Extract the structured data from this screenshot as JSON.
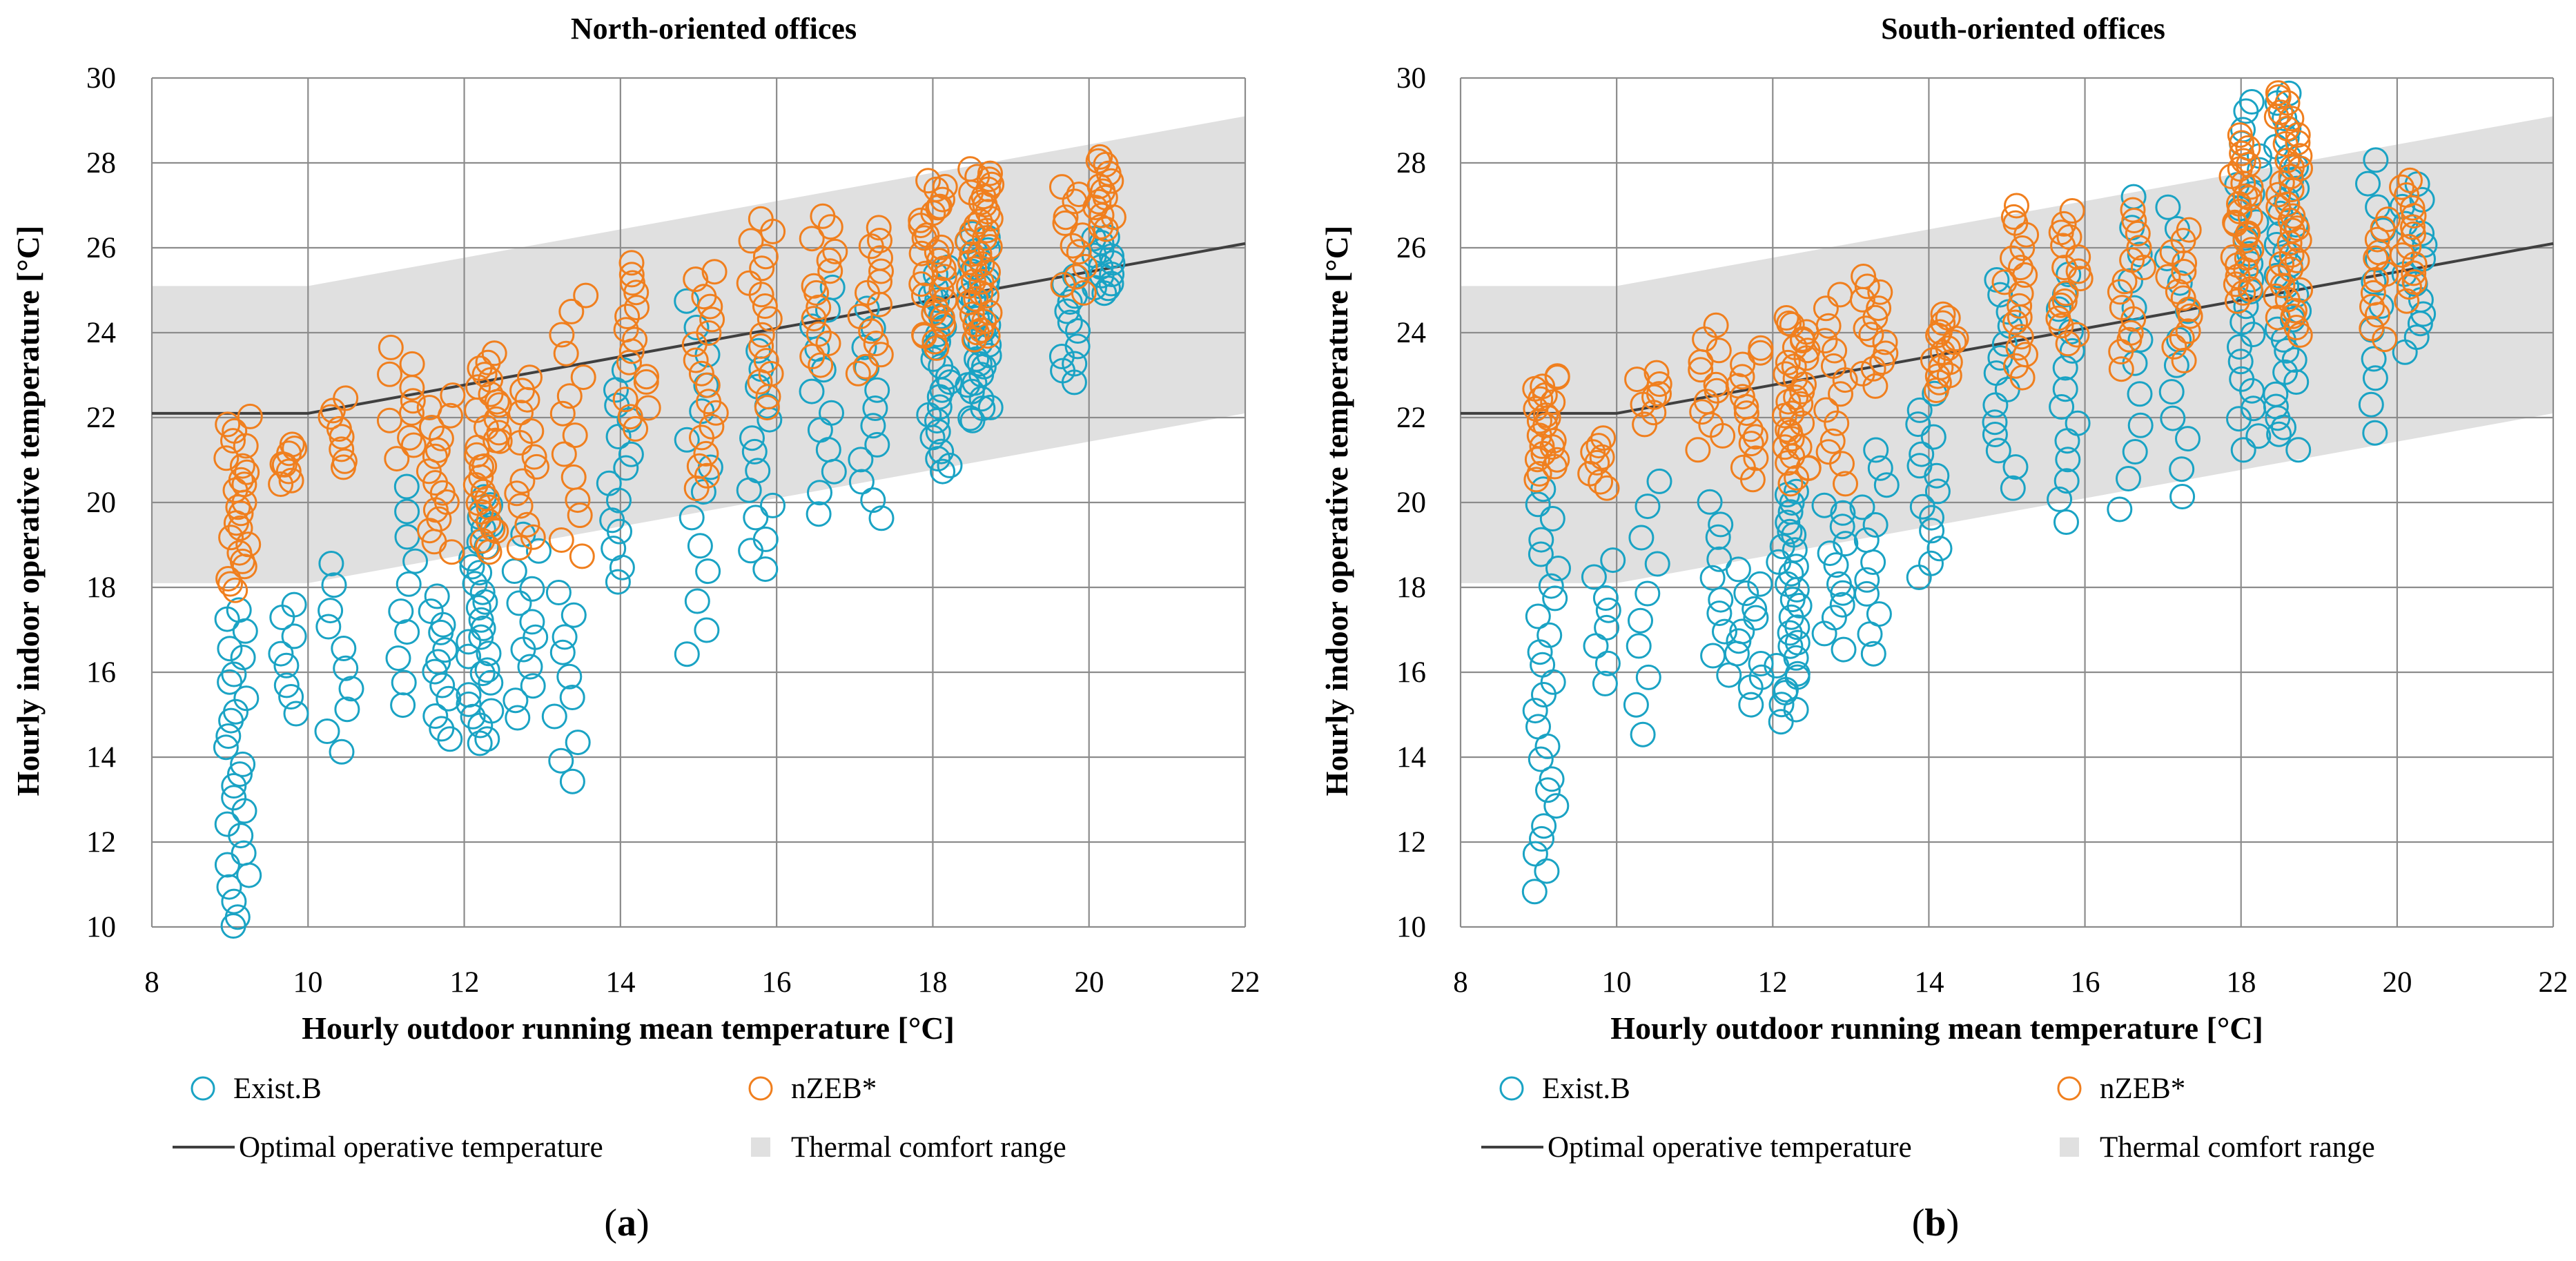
{
  "figure": {
    "panels": [
      {
        "label_open": "(",
        "label_letter": "a",
        "label_close": ")"
      },
      {
        "label_open": "(",
        "label_letter": "b",
        "label_close": ")"
      }
    ]
  },
  "colors": {
    "exist_b": "#1aa3c4",
    "nzeb": "#f07f1e",
    "optimal_line": "#404040",
    "comfort_band": "#e0e0e0",
    "grid": "#8c8c8c"
  },
  "chart_data": [
    {
      "type": "scatter",
      "title": "North-oriented offices",
      "xlabel": "Hourly outdoor running mean temperature [°C]",
      "ylabel": "Hourly indoor operative temperature [°C]",
      "xlim": [
        8,
        22
      ],
      "ylim": [
        10,
        30
      ],
      "xticks": [
        8,
        10,
        12,
        14,
        16,
        18,
        20,
        22
      ],
      "yticks": [
        10,
        12,
        14,
        16,
        18,
        20,
        22,
        24,
        26,
        28,
        30
      ],
      "grid": true,
      "legend": {
        "position": "bottom",
        "entries": [
          "Exist.B",
          "nZEB*",
          "Optimal operative temperature",
          "Thermal comfort range"
        ]
      },
      "optimal_line": {
        "name": "Optimal operative temperature",
        "x": [
          8,
          10,
          22
        ],
        "y": [
          22.1,
          22.1,
          26.1
        ]
      },
      "comfort_range": {
        "name": "Thermal comfort range",
        "x": [
          8,
          10,
          22
        ],
        "lower": [
          18.1,
          18.1,
          22.1
        ],
        "upper": [
          25.1,
          25.1,
          29.1
        ]
      },
      "series": [
        {
          "name": "Exist.B",
          "clusters": [
            {
              "x": 9.1,
              "y_min": 10.0,
              "y_max": 17.5,
              "n": 26
            },
            {
              "x": 9.7,
              "y_min": 15.0,
              "y_max": 17.6,
              "n": 8
            },
            {
              "x": 10.4,
              "y_min": 14.1,
              "y_max": 18.5,
              "n": 10
            },
            {
              "x": 11.3,
              "y_min": 15.2,
              "y_max": 20.3,
              "n": 10
            },
            {
              "x": 11.7,
              "y_min": 14.4,
              "y_max": 17.8,
              "n": 12
            },
            {
              "x": 12.2,
              "y_min": 14.3,
              "y_max": 20.1,
              "n": 30
            },
            {
              "x": 12.8,
              "y_min": 14.9,
              "y_max": 19.2,
              "n": 12
            },
            {
              "x": 13.3,
              "y_min": 13.4,
              "y_max": 17.9,
              "n": 10
            },
            {
              "x": 14.0,
              "y_min": 18.1,
              "y_max": 23.1,
              "n": 14
            },
            {
              "x": 15.0,
              "y_min": 16.4,
              "y_max": 24.7,
              "n": 14
            },
            {
              "x": 15.8,
              "y_min": 18.4,
              "y_max": 23.5,
              "n": 14
            },
            {
              "x": 16.6,
              "y_min": 19.7,
              "y_max": 25.1,
              "n": 12
            },
            {
              "x": 17.2,
              "y_min": 19.6,
              "y_max": 24.5,
              "n": 12
            },
            {
              "x": 18.1,
              "y_min": 20.7,
              "y_max": 25.5,
              "n": 26
            },
            {
              "x": 18.6,
              "y_min": 21.9,
              "y_max": 26.4,
              "n": 34
            },
            {
              "x": 19.7,
              "y_min": 22.8,
              "y_max": 25.4,
              "n": 12
            },
            {
              "x": 20.2,
              "y_min": 24.9,
              "y_max": 26.3,
              "n": 14
            }
          ]
        },
        {
          "name": "nZEB*",
          "clusters": [
            {
              "x": 9.1,
              "y_min": 17.9,
              "y_max": 22.0,
              "n": 24
            },
            {
              "x": 9.8,
              "y_min": 20.4,
              "y_max": 21.4,
              "n": 8
            },
            {
              "x": 10.4,
              "y_min": 20.8,
              "y_max": 22.4,
              "n": 8
            },
            {
              "x": 11.2,
              "y_min": 21.0,
              "y_max": 23.6,
              "n": 10
            },
            {
              "x": 11.7,
              "y_min": 18.8,
              "y_max": 22.5,
              "n": 16
            },
            {
              "x": 12.3,
              "y_min": 18.8,
              "y_max": 23.5,
              "n": 32
            },
            {
              "x": 12.8,
              "y_min": 18.9,
              "y_max": 23.0,
              "n": 14
            },
            {
              "x": 13.4,
              "y_min": 18.7,
              "y_max": 24.9,
              "n": 14
            },
            {
              "x": 14.2,
              "y_min": 21.7,
              "y_max": 25.7,
              "n": 16
            },
            {
              "x": 15.1,
              "y_min": 20.3,
              "y_max": 25.5,
              "n": 18
            },
            {
              "x": 15.8,
              "y_min": 22.2,
              "y_max": 26.7,
              "n": 16
            },
            {
              "x": 16.6,
              "y_min": 23.2,
              "y_max": 26.8,
              "n": 14
            },
            {
              "x": 17.2,
              "y_min": 23.0,
              "y_max": 26.5,
              "n": 14
            },
            {
              "x": 18.0,
              "y_min": 23.6,
              "y_max": 27.6,
              "n": 30
            },
            {
              "x": 18.6,
              "y_min": 23.8,
              "y_max": 27.9,
              "n": 40
            },
            {
              "x": 19.8,
              "y_min": 24.9,
              "y_max": 27.5,
              "n": 12
            },
            {
              "x": 20.2,
              "y_min": 26.4,
              "y_max": 28.2,
              "n": 14
            }
          ]
        }
      ]
    },
    {
      "type": "scatter",
      "title": "South-oriented offices",
      "xlabel": "Hourly outdoor running mean temperature [°C]",
      "ylabel": "Hourly indoor operative temperature [°C]",
      "xlim": [
        8,
        22
      ],
      "ylim": [
        10,
        30
      ],
      "xticks": [
        8,
        10,
        12,
        14,
        16,
        18,
        20,
        22
      ],
      "yticks": [
        10,
        12,
        14,
        16,
        18,
        20,
        22,
        24,
        26,
        28,
        30
      ],
      "grid": true,
      "legend": {
        "position": "bottom",
        "entries": [
          "Exist.B",
          "nZEB*",
          "Optimal operative temperature",
          "Thermal comfort range"
        ]
      },
      "optimal_line": {
        "name": "Optimal operative temperature",
        "x": [
          8,
          10,
          22
        ],
        "y": [
          22.1,
          22.1,
          26.1
        ]
      },
      "comfort_range": {
        "name": "Thermal comfort range",
        "x": [
          8,
          10,
          22
        ],
        "lower": [
          18.1,
          18.1,
          22.1
        ],
        "upper": [
          25.1,
          25.1,
          29.1
        ]
      },
      "series": [
        {
          "name": "Exist.B",
          "clusters": [
            {
              "x": 9.1,
              "y_min": 10.9,
              "y_max": 20.3,
              "n": 26
            },
            {
              "x": 9.8,
              "y_min": 15.8,
              "y_max": 18.6,
              "n": 8
            },
            {
              "x": 10.4,
              "y_min": 14.6,
              "y_max": 20.5,
              "n": 10
            },
            {
              "x": 11.3,
              "y_min": 16.0,
              "y_max": 20.0,
              "n": 10
            },
            {
              "x": 11.7,
              "y_min": 15.3,
              "y_max": 18.4,
              "n": 12
            },
            {
              "x": 12.2,
              "y_min": 14.9,
              "y_max": 20.3,
              "n": 30
            },
            {
              "x": 12.8,
              "y_min": 16.6,
              "y_max": 20.0,
              "n": 12
            },
            {
              "x": 13.3,
              "y_min": 16.5,
              "y_max": 21.2,
              "n": 12
            },
            {
              "x": 14.0,
              "y_min": 18.3,
              "y_max": 22.5,
              "n": 14
            },
            {
              "x": 15.0,
              "y_min": 20.4,
              "y_max": 25.3,
              "n": 14
            },
            {
              "x": 15.8,
              "y_min": 19.6,
              "y_max": 25.4,
              "n": 14
            },
            {
              "x": 16.6,
              "y_min": 19.9,
              "y_max": 27.2,
              "n": 12
            },
            {
              "x": 17.2,
              "y_min": 20.2,
              "y_max": 27.0,
              "n": 12
            },
            {
              "x": 18.1,
              "y_min": 21.3,
              "y_max": 29.5,
              "n": 26
            },
            {
              "x": 18.6,
              "y_min": 21.3,
              "y_max": 29.6,
              "n": 34
            },
            {
              "x": 19.7,
              "y_min": 21.7,
              "y_max": 28.1,
              "n": 12
            },
            {
              "x": 20.2,
              "y_min": 23.6,
              "y_max": 27.5,
              "n": 14
            }
          ]
        },
        {
          "name": "nZEB*",
          "clusters": [
            {
              "x": 9.1,
              "y_min": 20.6,
              "y_max": 23.0,
              "n": 22
            },
            {
              "x": 9.8,
              "y_min": 20.4,
              "y_max": 21.5,
              "n": 8
            },
            {
              "x": 10.4,
              "y_min": 21.9,
              "y_max": 23.1,
              "n": 8
            },
            {
              "x": 11.2,
              "y_min": 21.3,
              "y_max": 24.1,
              "n": 12
            },
            {
              "x": 11.7,
              "y_min": 20.6,
              "y_max": 23.7,
              "n": 14
            },
            {
              "x": 12.3,
              "y_min": 20.5,
              "y_max": 24.4,
              "n": 32
            },
            {
              "x": 12.8,
              "y_min": 20.5,
              "y_max": 24.9,
              "n": 14
            },
            {
              "x": 13.3,
              "y_min": 22.8,
              "y_max": 25.3,
              "n": 14
            },
            {
              "x": 14.2,
              "y_min": 22.7,
              "y_max": 24.4,
              "n": 16
            },
            {
              "x": 15.1,
              "y_min": 23.0,
              "y_max": 27.0,
              "n": 18
            },
            {
              "x": 15.8,
              "y_min": 23.8,
              "y_max": 26.8,
              "n": 16
            },
            {
              "x": 16.6,
              "y_min": 23.2,
              "y_max": 26.9,
              "n": 14
            },
            {
              "x": 17.2,
              "y_min": 23.4,
              "y_max": 26.4,
              "n": 14
            },
            {
              "x": 18.0,
              "y_min": 24.8,
              "y_max": 28.6,
              "n": 30
            },
            {
              "x": 18.6,
              "y_min": 24.0,
              "y_max": 29.7,
              "n": 40
            },
            {
              "x": 19.8,
              "y_min": 23.9,
              "y_max": 26.7,
              "n": 12
            },
            {
              "x": 20.2,
              "y_min": 24.8,
              "y_max": 27.6,
              "n": 14
            }
          ]
        }
      ]
    }
  ]
}
